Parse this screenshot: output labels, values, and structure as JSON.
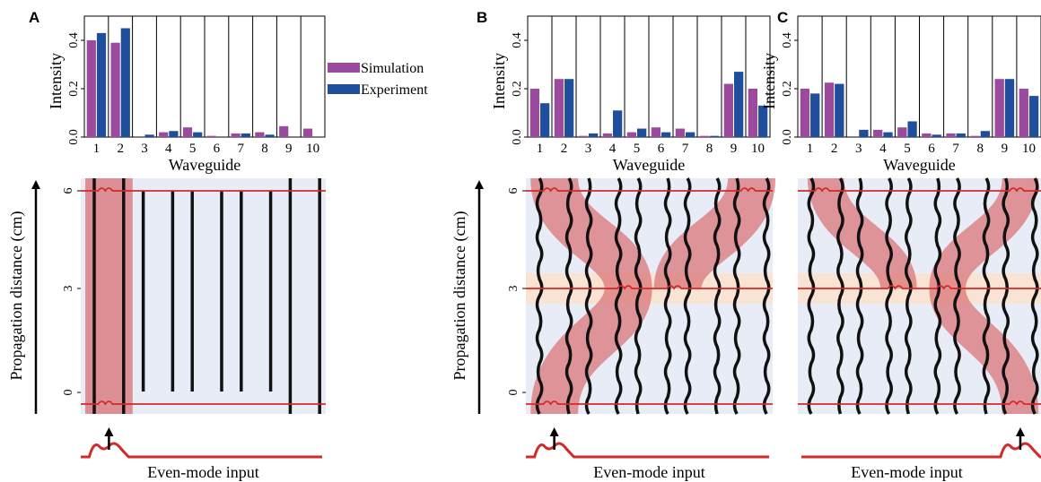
{
  "chart_data": [
    {
      "type": "bar",
      "panel_label": "A",
      "ylabel": "Intensity",
      "xlabel": "Waveguide",
      "ylim": [
        0,
        0.5
      ],
      "yticks": [
        "0.0",
        "0.2",
        "0.4"
      ],
      "categories": [
        "1",
        "2",
        "3",
        "4",
        "5",
        "6",
        "7",
        "8",
        "9",
        "10"
      ],
      "series": [
        {
          "name": "Simulation",
          "color": "#9b4a9e",
          "values": [
            0.4,
            0.39,
            0.0,
            0.02,
            0.04,
            0.005,
            0.015,
            0.02,
            0.045,
            0.035
          ]
        },
        {
          "name": "Experiment",
          "color": "#1f4e9c",
          "values": [
            0.43,
            0.45,
            0.01,
            0.025,
            0.02,
            0.0,
            0.015,
            0.01,
            0.0,
            0.0
          ]
        }
      ],
      "legend": {
        "position": "right"
      },
      "propagation": {
        "ylabel": "Propagation distance (cm)",
        "yticks": [
          "0",
          "3",
          "6"
        ],
        "input_label": "Even-mode input",
        "input_waveguide": 1,
        "interactions": []
      }
    },
    {
      "type": "bar",
      "panel_label": "B",
      "ylabel": "Intensity",
      "xlabel": "Waveguide",
      "ylim": [
        0,
        0.5
      ],
      "yticks": [
        "0.0",
        "0.2",
        "0.4"
      ],
      "categories": [
        "1",
        "2",
        "3",
        "4",
        "5",
        "6",
        "7",
        "8",
        "9",
        "10"
      ],
      "series": [
        {
          "name": "Simulation",
          "color": "#9b4a9e",
          "values": [
            0.2,
            0.24,
            0.005,
            0.015,
            0.02,
            0.04,
            0.035,
            0.005,
            0.22,
            0.2
          ]
        },
        {
          "name": "Experiment",
          "color": "#1f4e9c",
          "values": [
            0.14,
            0.24,
            0.015,
            0.11,
            0.035,
            0.02,
            0.02,
            0.005,
            0.27,
            0.13
          ]
        }
      ],
      "propagation": {
        "ylabel": "Propagation distance (cm)",
        "yticks": [
          "0",
          "3",
          "6"
        ],
        "input_label": "Even-mode input",
        "input_waveguide": 1,
        "interactions": [
          4,
          6
        ]
      }
    },
    {
      "type": "bar",
      "panel_label": "C",
      "ylabel": "Intensity",
      "xlabel": "Waveguide",
      "ylim": [
        0,
        0.5
      ],
      "yticks": [
        "0.0",
        "0.2",
        "0.4"
      ],
      "categories": [
        "1",
        "2",
        "3",
        "4",
        "5",
        "6",
        "7",
        "8",
        "9",
        "10"
      ],
      "series": [
        {
          "name": "Simulation",
          "color": "#9b4a9e",
          "values": [
            0.2,
            0.225,
            0.0,
            0.03,
            0.04,
            0.015,
            0.015,
            0.005,
            0.24,
            0.2
          ]
        },
        {
          "name": "Experiment",
          "color": "#1f4e9c",
          "values": [
            0.18,
            0.22,
            0.03,
            0.02,
            0.065,
            0.01,
            0.015,
            0.025,
            0.24,
            0.17
          ]
        }
      ],
      "propagation": {
        "ylabel": "Propagation distance (cm)",
        "yticks": [
          "0",
          "3",
          "6"
        ],
        "input_label": "Even-mode input",
        "input_waveguide": 10,
        "interactions": [
          4,
          6
        ]
      }
    }
  ],
  "colors": {
    "waveguide_panel_bg": "#e8ecf7",
    "beam": "#d97075",
    "interaction_band": "#fbe3cf",
    "red_line": "#d12a2a",
    "waveguide": "#111111"
  }
}
